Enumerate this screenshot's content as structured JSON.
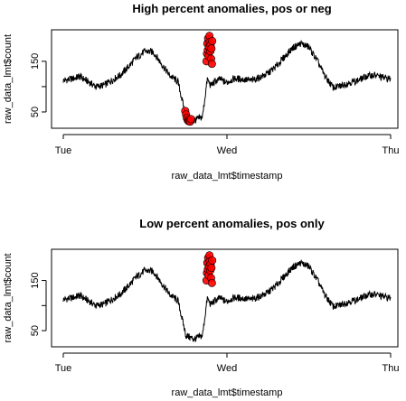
{
  "chart_data": [
    {
      "type": "line",
      "title": "High percent anomalies, pos or neg",
      "xlabel": "raw_data_lmt$timestamp",
      "ylabel": "raw_data_lmt$count",
      "x_ticks": [
        "Tue",
        "Wed",
        "Thu"
      ],
      "y_ticks": [
        50,
        100,
        150
      ],
      "y_tick_labels": [
        "50",
        "150"
      ],
      "xlim": [
        0,
        2
      ],
      "ylim": [
        25,
        205
      ],
      "grid": false,
      "series": [
        {
          "role": "counts",
          "color": "#000000",
          "x": [
            0.0,
            0.05,
            0.1,
            0.15,
            0.2,
            0.25,
            0.3,
            0.35,
            0.4,
            0.45,
            0.5,
            0.55,
            0.6,
            0.65,
            0.7,
            0.75,
            0.8,
            0.85,
            0.88,
            0.9,
            0.92,
            0.94,
            0.96,
            0.98,
            1.0,
            1.02,
            1.05,
            1.1,
            1.15,
            1.2,
            1.25,
            1.3,
            1.35,
            1.4,
            1.45,
            1.5,
            1.55,
            1.6,
            1.65,
            1.68,
            1.7,
            1.72,
            1.75,
            1.8,
            1.85,
            1.9,
            1.95,
            2.0
          ],
          "y": [
            112,
            115,
            120,
            110,
            100,
            103,
            113,
            123,
            140,
            158,
            170,
            168,
            145,
            122,
            110,
            40,
            33,
            40,
            115,
            102,
            108,
            112,
            115,
            110,
            108,
            112,
            116,
            114,
            112,
            118,
            126,
            140,
            158,
            176,
            185,
            178,
            152,
            120,
            98,
            100,
            102,
            105,
            108,
            112,
            120,
            123,
            118,
            115
          ]
        }
      ],
      "anomalies": {
        "color": "#ff0000",
        "x": [
          0.745,
          0.75,
          0.755,
          0.76,
          0.765,
          0.77,
          0.775,
          0.78,
          0.875,
          0.878,
          0.88,
          0.883,
          0.885,
          0.888,
          0.89,
          0.893,
          0.895,
          0.898,
          0.9,
          0.903,
          0.905,
          0.908,
          0.91
        ],
        "y": [
          52,
          45,
          38,
          34,
          32,
          33,
          31,
          36,
          150,
          165,
          185,
          172,
          195,
          160,
          178,
          200,
          188,
          170,
          182,
          155,
          175,
          145,
          190
        ]
      }
    },
    {
      "type": "line",
      "title": "Low percent anomalies, pos only",
      "xlabel": "raw_data_lmt$timestamp",
      "ylabel": "raw_data_lmt$count",
      "x_ticks": [
        "Tue",
        "Wed",
        "Thu"
      ],
      "y_ticks": [
        50,
        100,
        150
      ],
      "y_tick_labels": [
        "50",
        "150"
      ],
      "xlim": [
        0,
        2
      ],
      "ylim": [
        25,
        205
      ],
      "grid": false,
      "series": [
        {
          "role": "counts",
          "color": "#000000",
          "x": [
            0.0,
            0.05,
            0.1,
            0.15,
            0.2,
            0.25,
            0.3,
            0.35,
            0.4,
            0.45,
            0.5,
            0.55,
            0.6,
            0.65,
            0.7,
            0.75,
            0.8,
            0.85,
            0.88,
            0.9,
            0.92,
            0.94,
            0.96,
            0.98,
            1.0,
            1.02,
            1.05,
            1.1,
            1.15,
            1.2,
            1.25,
            1.3,
            1.35,
            1.4,
            1.45,
            1.5,
            1.55,
            1.6,
            1.65,
            1.68,
            1.7,
            1.72,
            1.75,
            1.8,
            1.85,
            1.9,
            1.95,
            2.0
          ],
          "y": [
            112,
            115,
            120,
            110,
            100,
            103,
            113,
            123,
            140,
            158,
            170,
            168,
            145,
            122,
            110,
            40,
            33,
            40,
            115,
            102,
            108,
            112,
            115,
            110,
            108,
            112,
            116,
            114,
            112,
            118,
            126,
            140,
            158,
            176,
            185,
            178,
            152,
            120,
            98,
            100,
            102,
            105,
            108,
            112,
            120,
            123,
            118,
            115
          ]
        }
      ],
      "anomalies": {
        "color": "#ff0000",
        "x": [
          0.875,
          0.878,
          0.88,
          0.883,
          0.885,
          0.888,
          0.89,
          0.893,
          0.895,
          0.898,
          0.9,
          0.903,
          0.905,
          0.908,
          0.91
        ],
        "y": [
          150,
          165,
          185,
          172,
          195,
          160,
          178,
          200,
          188,
          170,
          182,
          155,
          175,
          145,
          190
        ]
      }
    }
  ]
}
